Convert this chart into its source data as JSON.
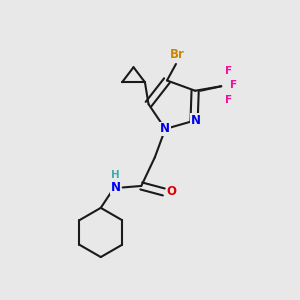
{
  "bg_color": "#e8e8e8",
  "bond_color": "#1a1a1a",
  "bond_lw": 1.5,
  "atom_colors": {
    "N": "#0000ee",
    "O": "#dd0000",
    "F": "#ee1199",
    "Br": "#cc8800",
    "H": "#44aaaa",
    "C": "#1a1a1a"
  },
  "font_size": 8.5,
  "font_size_small": 7.5
}
